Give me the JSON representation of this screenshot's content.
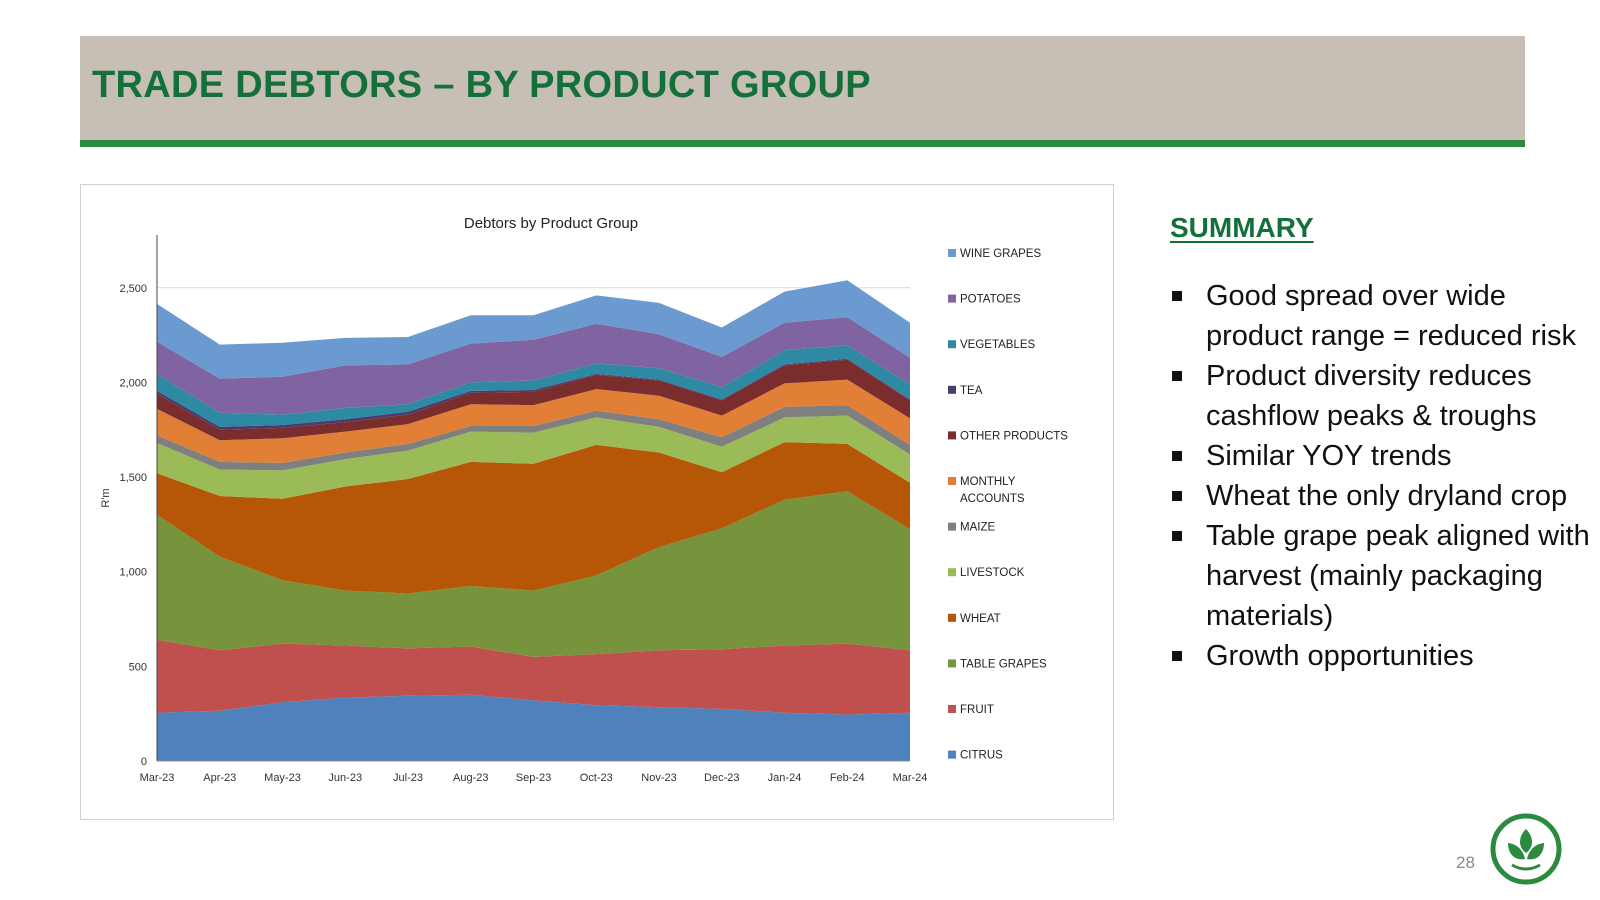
{
  "slide": {
    "title": "TRADE DEBTORS – BY PRODUCT GROUP",
    "page_number": "28"
  },
  "summary": {
    "heading": "SUMMARY",
    "bullets": [
      "Good spread over wide product range = reduced risk",
      "Product diversity reduces cashflow peaks & troughs",
      "Similar YOY trends",
      "Wheat the only dryland crop",
      "Table grape peak aligned with harvest (mainly packaging materials)",
      "Growth opportunities"
    ]
  },
  "chart_data": {
    "type": "area",
    "stacked": true,
    "title": "Debtors by Product Group",
    "xlabel": "",
    "ylabel": "R'm",
    "ylim": [
      0,
      2800
    ],
    "yticks": [
      0,
      500,
      1000,
      1500,
      2000,
      2500
    ],
    "ytick_labels": [
      "0",
      "500",
      "1,000",
      "1,500",
      "2,000",
      "2,500"
    ],
    "grid": "horizontal",
    "legend_position": "right",
    "categories": [
      "Mar-23",
      "Apr-23",
      "May-23",
      "Jun-23",
      "Jul-23",
      "Aug-23",
      "Sep-23",
      "Oct-23",
      "Nov-23",
      "Dec-23",
      "Jan-24",
      "Feb-24",
      "Mar-24"
    ],
    "series": [
      {
        "name": "CITRUS",
        "color": "#4f81bd",
        "values": [
          255,
          265,
          310,
          335,
          345,
          350,
          320,
          295,
          285,
          275,
          255,
          245,
          255
        ]
      },
      {
        "name": "FRUIT",
        "color": "#c0504d",
        "values": [
          385,
          320,
          310,
          275,
          250,
          255,
          230,
          270,
          300,
          315,
          355,
          375,
          330
        ]
      },
      {
        "name": "TABLE GRAPES",
        "color": "#77933c",
        "values": [
          660,
          495,
          335,
          290,
          290,
          320,
          350,
          415,
          545,
          640,
          770,
          805,
          640
        ]
      },
      {
        "name": "WHEAT",
        "color": "#b65708",
        "values": [
          220,
          320,
          430,
          550,
          605,
          655,
          670,
          690,
          500,
          295,
          305,
          250,
          245
        ]
      },
      {
        "name": "LIVESTOCK",
        "color": "#9bbb59",
        "values": [
          160,
          140,
          150,
          145,
          150,
          160,
          165,
          145,
          135,
          135,
          130,
          150,
          150
        ]
      },
      {
        "name": "MAIZE",
        "color": "#7f7f7f",
        "values": [
          40,
          40,
          40,
          35,
          35,
          30,
          35,
          35,
          40,
          50,
          55,
          55,
          50
        ]
      },
      {
        "name": "MONTHLY ACCOUNTS",
        "color": "#e07f35",
        "values": [
          140,
          115,
          130,
          110,
          105,
          115,
          110,
          115,
          125,
          115,
          125,
          135,
          140
        ]
      },
      {
        "name": "OTHER PRODUCTS",
        "color": "#7b2c2c",
        "values": [
          80,
          55,
          55,
          50,
          50,
          60,
          70,
          75,
          80,
          80,
          95,
          105,
          95
        ]
      },
      {
        "name": "TEA",
        "color": "#4b3b6b",
        "values": [
          15,
          15,
          15,
          15,
          15,
          10,
          10,
          5,
          5,
          5,
          5,
          5,
          5
        ]
      },
      {
        "name": "VEGETABLES",
        "color": "#2e8aa3",
        "values": [
          90,
          75,
          55,
          60,
          40,
          45,
          50,
          55,
          60,
          65,
          75,
          70,
          80
        ]
      },
      {
        "name": "POTATOES",
        "color": "#8064a2",
        "values": [
          170,
          180,
          200,
          225,
          210,
          205,
          215,
          210,
          180,
          160,
          145,
          150,
          140
        ]
      },
      {
        "name": "WINE GRAPES",
        "color": "#6b9ad1",
        "values": [
          200,
          180,
          180,
          145,
          145,
          150,
          130,
          150,
          165,
          155,
          165,
          195,
          185
        ]
      }
    ]
  }
}
